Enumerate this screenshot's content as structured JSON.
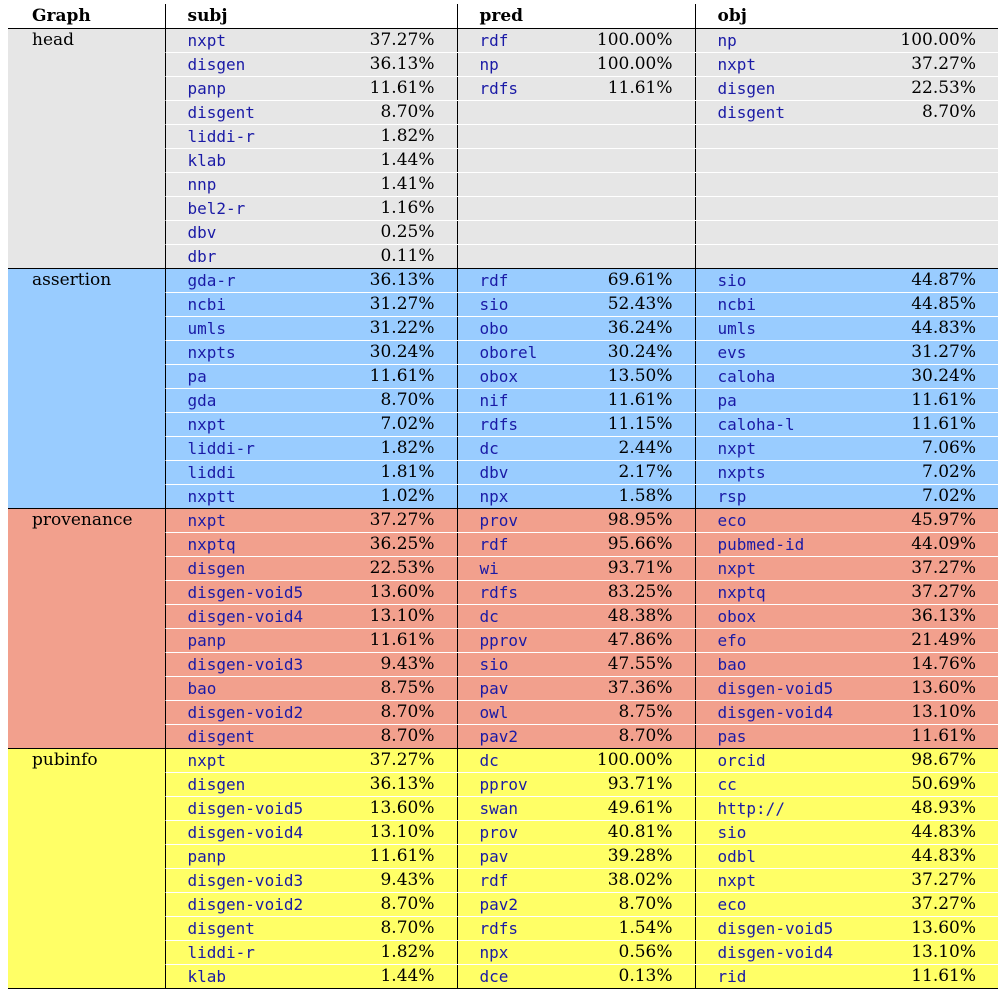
{
  "headers": {
    "graph": "Graph",
    "subj": "subj",
    "pred": "pred",
    "obj": "obj"
  },
  "colors": {
    "head": "#e6e6e6",
    "assertion": "#99ccff",
    "provenance": "#f2a08d",
    "pubinfo": "#ffff66",
    "name_text": "#1a1aa6"
  },
  "groups": [
    {
      "name": "head",
      "rows": [
        {
          "subj": "nxpt",
          "subj_pct": "37.27%",
          "pred": "rdf",
          "pred_pct": "100.00%",
          "obj": "np",
          "obj_pct": "100.00%"
        },
        {
          "subj": "disgen",
          "subj_pct": "36.13%",
          "pred": "np",
          "pred_pct": "100.00%",
          "obj": "nxpt",
          "obj_pct": "37.27%"
        },
        {
          "subj": "panp",
          "subj_pct": "11.61%",
          "pred": "rdfs",
          "pred_pct": "11.61%",
          "obj": "disgen",
          "obj_pct": "22.53%"
        },
        {
          "subj": "disgent",
          "subj_pct": "8.70%",
          "pred": "",
          "pred_pct": "",
          "obj": "disgent",
          "obj_pct": "8.70%"
        },
        {
          "subj": "liddi-r",
          "subj_pct": "1.82%",
          "pred": "",
          "pred_pct": "",
          "obj": "",
          "obj_pct": ""
        },
        {
          "subj": "klab",
          "subj_pct": "1.44%",
          "pred": "",
          "pred_pct": "",
          "obj": "",
          "obj_pct": ""
        },
        {
          "subj": "nnp",
          "subj_pct": "1.41%",
          "pred": "",
          "pred_pct": "",
          "obj": "",
          "obj_pct": ""
        },
        {
          "subj": "bel2-r",
          "subj_pct": "1.16%",
          "pred": "",
          "pred_pct": "",
          "obj": "",
          "obj_pct": ""
        },
        {
          "subj": "dbv",
          "subj_pct": "0.25%",
          "pred": "",
          "pred_pct": "",
          "obj": "",
          "obj_pct": ""
        },
        {
          "subj": "dbr",
          "subj_pct": "0.11%",
          "pred": "",
          "pred_pct": "",
          "obj": "",
          "obj_pct": ""
        }
      ]
    },
    {
      "name": "assertion",
      "rows": [
        {
          "subj": "gda-r",
          "subj_pct": "36.13%",
          "pred": "rdf",
          "pred_pct": "69.61%",
          "obj": "sio",
          "obj_pct": "44.87%"
        },
        {
          "subj": "ncbi",
          "subj_pct": "31.27%",
          "pred": "sio",
          "pred_pct": "52.43%",
          "obj": "ncbi",
          "obj_pct": "44.85%"
        },
        {
          "subj": "umls",
          "subj_pct": "31.22%",
          "pred": "obo",
          "pred_pct": "36.24%",
          "obj": "umls",
          "obj_pct": "44.83%"
        },
        {
          "subj": "nxpts",
          "subj_pct": "30.24%",
          "pred": "oborel",
          "pred_pct": "30.24%",
          "obj": "evs",
          "obj_pct": "31.27%"
        },
        {
          "subj": "pa",
          "subj_pct": "11.61%",
          "pred": "obox",
          "pred_pct": "13.50%",
          "obj": "caloha",
          "obj_pct": "30.24%"
        },
        {
          "subj": "gda",
          "subj_pct": "8.70%",
          "pred": "nif",
          "pred_pct": "11.61%",
          "obj": "pa",
          "obj_pct": "11.61%"
        },
        {
          "subj": "nxpt",
          "subj_pct": "7.02%",
          "pred": "rdfs",
          "pred_pct": "11.15%",
          "obj": "caloha-l",
          "obj_pct": "11.61%"
        },
        {
          "subj": "liddi-r",
          "subj_pct": "1.82%",
          "pred": "dc",
          "pred_pct": "2.44%",
          "obj": "nxpt",
          "obj_pct": "7.06%"
        },
        {
          "subj": "liddi",
          "subj_pct": "1.81%",
          "pred": "dbv",
          "pred_pct": "2.17%",
          "obj": "nxpts",
          "obj_pct": "7.02%"
        },
        {
          "subj": "nxptt",
          "subj_pct": "1.02%",
          "pred": "npx",
          "pred_pct": "1.58%",
          "obj": "rsp",
          "obj_pct": "7.02%"
        }
      ]
    },
    {
      "name": "provenance",
      "rows": [
        {
          "subj": "nxpt",
          "subj_pct": "37.27%",
          "pred": "prov",
          "pred_pct": "98.95%",
          "obj": "eco",
          "obj_pct": "45.97%"
        },
        {
          "subj": "nxptq",
          "subj_pct": "36.25%",
          "pred": "rdf",
          "pred_pct": "95.66%",
          "obj": "pubmed-id",
          "obj_pct": "44.09%"
        },
        {
          "subj": "disgen",
          "subj_pct": "22.53%",
          "pred": "wi",
          "pred_pct": "93.71%",
          "obj": "nxpt",
          "obj_pct": "37.27%"
        },
        {
          "subj": "disgen-void5",
          "subj_pct": "13.60%",
          "pred": "rdfs",
          "pred_pct": "83.25%",
          "obj": "nxptq",
          "obj_pct": "37.27%"
        },
        {
          "subj": "disgen-void4",
          "subj_pct": "13.10%",
          "pred": "dc",
          "pred_pct": "48.38%",
          "obj": "obox",
          "obj_pct": "36.13%"
        },
        {
          "subj": "panp",
          "subj_pct": "11.61%",
          "pred": "pprov",
          "pred_pct": "47.86%",
          "obj": "efo",
          "obj_pct": "21.49%"
        },
        {
          "subj": "disgen-void3",
          "subj_pct": "9.43%",
          "pred": "sio",
          "pred_pct": "47.55%",
          "obj": "bao",
          "obj_pct": "14.76%"
        },
        {
          "subj": "bao",
          "subj_pct": "8.75%",
          "pred": "pav",
          "pred_pct": "37.36%",
          "obj": "disgen-void5",
          "obj_pct": "13.60%"
        },
        {
          "subj": "disgen-void2",
          "subj_pct": "8.70%",
          "pred": "owl",
          "pred_pct": "8.75%",
          "obj": "disgen-void4",
          "obj_pct": "13.10%"
        },
        {
          "subj": "disgent",
          "subj_pct": "8.70%",
          "pred": "pav2",
          "pred_pct": "8.70%",
          "obj": "pas",
          "obj_pct": "11.61%"
        }
      ]
    },
    {
      "name": "pubinfo",
      "rows": [
        {
          "subj": "nxpt",
          "subj_pct": "37.27%",
          "pred": "dc",
          "pred_pct": "100.00%",
          "obj": "orcid",
          "obj_pct": "98.67%"
        },
        {
          "subj": "disgen",
          "subj_pct": "36.13%",
          "pred": "pprov",
          "pred_pct": "93.71%",
          "obj": "cc",
          "obj_pct": "50.69%"
        },
        {
          "subj": "disgen-void5",
          "subj_pct": "13.60%",
          "pred": "swan",
          "pred_pct": "49.61%",
          "obj": "http://",
          "obj_pct": "48.93%"
        },
        {
          "subj": "disgen-void4",
          "subj_pct": "13.10%",
          "pred": "prov",
          "pred_pct": "40.81%",
          "obj": "sio",
          "obj_pct": "44.83%"
        },
        {
          "subj": "panp",
          "subj_pct": "11.61%",
          "pred": "pav",
          "pred_pct": "39.28%",
          "obj": "odbl",
          "obj_pct": "44.83%"
        },
        {
          "subj": "disgen-void3",
          "subj_pct": "9.43%",
          "pred": "rdf",
          "pred_pct": "38.02%",
          "obj": "nxpt",
          "obj_pct": "37.27%"
        },
        {
          "subj": "disgen-void2",
          "subj_pct": "8.70%",
          "pred": "pav2",
          "pred_pct": "8.70%",
          "obj": "eco",
          "obj_pct": "37.27%"
        },
        {
          "subj": "disgent",
          "subj_pct": "8.70%",
          "pred": "rdfs",
          "pred_pct": "1.54%",
          "obj": "disgen-void5",
          "obj_pct": "13.60%"
        },
        {
          "subj": "liddi-r",
          "subj_pct": "1.82%",
          "pred": "npx",
          "pred_pct": "0.56%",
          "obj": "disgen-void4",
          "obj_pct": "13.10%"
        },
        {
          "subj": "klab",
          "subj_pct": "1.44%",
          "pred": "dce",
          "pred_pct": "0.13%",
          "obj": "rid",
          "obj_pct": "11.61%"
        }
      ]
    }
  ]
}
